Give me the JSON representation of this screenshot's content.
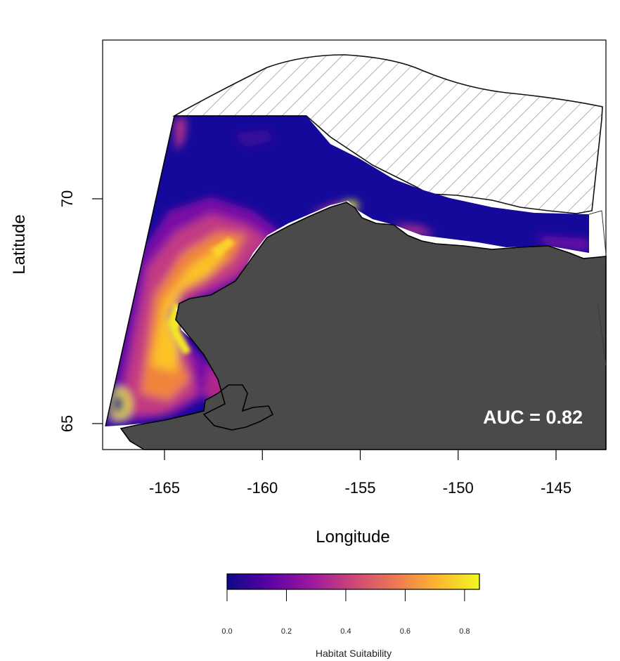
{
  "map": {
    "x_axis": {
      "label": "Longitude",
      "ticks": [
        "-165",
        "-160",
        "-155",
        "-150",
        "-145"
      ],
      "tick_values": [
        -165,
        -160,
        -155,
        -150,
        -145
      ]
    },
    "y_axis": {
      "label": "Latitude",
      "ticks": [
        "65",
        "70"
      ],
      "tick_values": [
        65,
        70
      ]
    },
    "annotation": "AUC = 0.82",
    "colors": {
      "land": "#4a4a4a",
      "hatch_outline": "#1a1a1a",
      "colormap": [
        "#0d0887",
        "#5c01a6",
        "#9c179e",
        "#cc4778",
        "#ed7953",
        "#fdb42f",
        "#f0f921"
      ]
    },
    "regions": [
      "habitat-suitability-raster",
      "land-mass",
      "hatched-sea-ice-area"
    ]
  },
  "colorbar": {
    "title": "Habitat Suitability",
    "ticks": [
      "0.0",
      "0.2",
      "0.4",
      "0.6",
      "0.8"
    ],
    "tick_values": [
      0.0,
      0.2,
      0.4,
      0.6,
      0.8
    ],
    "range": [
      0.0,
      0.85
    ]
  }
}
